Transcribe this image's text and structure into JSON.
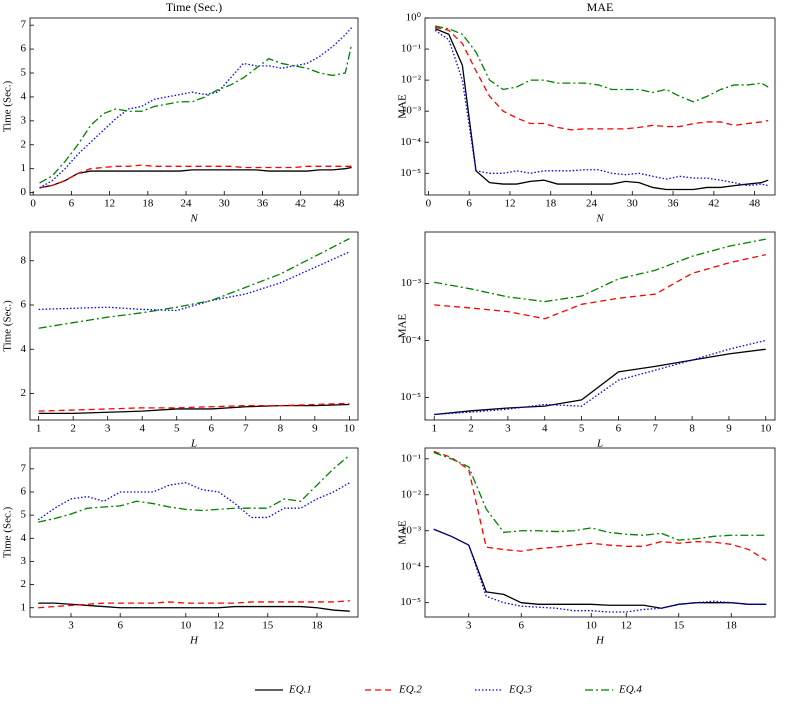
{
  "chart_data": [
    {
      "type": "line",
      "title": "Time (Sec.)",
      "xlabel": "N",
      "ylabel": "Time (Sec.)",
      "log_y": false,
      "x": [
        1,
        3,
        5,
        7,
        9,
        11,
        13,
        15,
        17,
        19,
        21,
        23,
        25,
        27,
        29,
        31,
        33,
        35,
        37,
        39,
        41,
        43,
        45,
        47,
        49,
        50
      ],
      "xlim": [
        -0.5,
        51
      ],
      "xticks": [
        0,
        6,
        12,
        18,
        24,
        30,
        36,
        42,
        48
      ],
      "ylim": [
        -0.1,
        7.3
      ],
      "yticks": [
        0,
        1,
        2,
        3,
        4,
        5,
        6,
        7
      ],
      "series": [
        {
          "name": "EQ.1",
          "color": "#000000",
          "linestyle": "solid",
          "values": [
            0.2,
            0.3,
            0.5,
            0.8,
            0.9,
            0.9,
            0.9,
            0.9,
            0.9,
            0.9,
            0.9,
            0.9,
            0.95,
            0.95,
            0.95,
            0.95,
            0.95,
            0.95,
            0.9,
            0.9,
            0.9,
            0.9,
            0.95,
            0.95,
            1.0,
            1.05
          ]
        },
        {
          "name": "EQ.2",
          "color": "#ff0000",
          "linestyle": "dashed",
          "values": [
            0.2,
            0.3,
            0.5,
            0.8,
            1.0,
            1.05,
            1.1,
            1.1,
            1.15,
            1.1,
            1.1,
            1.1,
            1.1,
            1.1,
            1.1,
            1.1,
            1.05,
            1.05,
            1.05,
            1.05,
            1.05,
            1.1,
            1.1,
            1.1,
            1.1,
            1.1
          ]
        },
        {
          "name": "EQ.3",
          "color": "#0000ff",
          "linestyle": "dotted",
          "values": [
            0.2,
            0.5,
            1.0,
            1.6,
            2.1,
            2.6,
            3.1,
            3.5,
            3.6,
            3.9,
            4.0,
            4.1,
            4.2,
            4.1,
            4.2,
            4.8,
            5.4,
            5.3,
            5.3,
            5.2,
            5.3,
            5.4,
            5.7,
            6.1,
            6.6,
            6.9
          ]
        },
        {
          "name": "EQ.4",
          "color": "#008000",
          "linestyle": "dashdot",
          "values": [
            0.4,
            0.7,
            1.3,
            2.0,
            2.8,
            3.3,
            3.5,
            3.4,
            3.4,
            3.6,
            3.7,
            3.8,
            3.8,
            4.0,
            4.3,
            4.5,
            4.8,
            5.2,
            5.6,
            5.4,
            5.3,
            5.2,
            5.0,
            4.9,
            5.0,
            6.2
          ]
        }
      ]
    },
    {
      "type": "line",
      "title": "MAE",
      "xlabel": "N",
      "ylabel": "MAE",
      "log_y": true,
      "x": [
        1,
        3,
        5,
        7,
        9,
        11,
        13,
        15,
        17,
        19,
        21,
        23,
        25,
        27,
        29,
        31,
        33,
        35,
        37,
        39,
        41,
        43,
        45,
        47,
        49,
        50
      ],
      "xlim": [
        -0.5,
        51
      ],
      "xticks": [
        0,
        6,
        12,
        18,
        24,
        30,
        36,
        42,
        48
      ],
      "ylim": [
        2e-06,
        1
      ],
      "yticks": [
        {
          "value": 1e-05,
          "label": "10⁻⁵"
        },
        {
          "value": 0.0001,
          "label": "10⁻⁴"
        },
        {
          "value": 0.001,
          "label": "10⁻³"
        },
        {
          "value": 0.01,
          "label": "10⁻²"
        },
        {
          "value": 0.1,
          "label": "10⁻¹"
        },
        {
          "value": 1,
          "label": "10⁰"
        }
      ],
      "series": [
        {
          "name": "EQ.1",
          "color": "#000000",
          "linestyle": "solid",
          "values": [
            0.45,
            0.3,
            0.03,
            1.2e-05,
            5e-06,
            4.5e-06,
            4.5e-06,
            5.5e-06,
            6e-06,
            4.5e-06,
            4.5e-06,
            4.5e-06,
            4.5e-06,
            4.5e-06,
            5.5e-06,
            5e-06,
            3.5e-06,
            3e-06,
            3e-06,
            3e-06,
            3.5e-06,
            3.5e-06,
            4e-06,
            4.5e-06,
            5e-06,
            6e-06
          ]
        },
        {
          "name": "EQ.2",
          "color": "#ff0000",
          "linestyle": "dashed",
          "values": [
            0.5,
            0.4,
            0.15,
            0.02,
            0.003,
            0.001,
            0.0006,
            0.0004,
            0.0004,
            0.0003,
            0.00025,
            0.00027,
            0.00027,
            0.00027,
            0.00027,
            0.0003,
            0.00035,
            0.00032,
            0.00032,
            0.0004,
            0.00045,
            0.00045,
            0.00035,
            0.0004,
            0.00045,
            0.0005
          ]
        },
        {
          "name": "EQ.3",
          "color": "#0000ff",
          "linestyle": "dotted",
          "values": [
            0.4,
            0.2,
            0.01,
            1.2e-05,
            1e-05,
            1e-05,
            1.2e-05,
            1e-05,
            1.2e-05,
            1.2e-05,
            1.2e-05,
            1.3e-05,
            1.3e-05,
            1e-05,
            9e-06,
            1e-05,
            8e-06,
            6.5e-06,
            8e-06,
            7e-06,
            7e-06,
            6e-06,
            5e-06,
            4e-06,
            4.5e-06,
            4e-06
          ]
        },
        {
          "name": "EQ.4",
          "color": "#008000",
          "linestyle": "dashdot",
          "values": [
            0.55,
            0.45,
            0.3,
            0.08,
            0.01,
            0.005,
            0.006,
            0.01,
            0.01,
            0.008,
            0.008,
            0.008,
            0.007,
            0.005,
            0.005,
            0.005,
            0.004,
            0.005,
            0.003,
            0.002,
            0.003,
            0.005,
            0.007,
            0.007,
            0.008,
            0.006
          ]
        }
      ]
    },
    {
      "type": "line",
      "xlabel": "L",
      "ylabel": "Time (Sec.)",
      "log_y": false,
      "x": [
        1,
        2,
        3,
        4,
        5,
        6,
        7,
        8,
        9,
        10
      ],
      "xlim": [
        0.75,
        10.25
      ],
      "xticks": [
        1,
        2,
        3,
        4,
        5,
        6,
        7,
        8,
        9,
        10
      ],
      "ylim": [
        0.8,
        9.3
      ],
      "yticks": [
        2,
        4,
        6,
        8
      ],
      "series": [
        {
          "name": "EQ.1",
          "color": "#000000",
          "linestyle": "solid",
          "values": [
            1.1,
            1.1,
            1.15,
            1.2,
            1.3,
            1.3,
            1.4,
            1.45,
            1.45,
            1.5
          ]
        },
        {
          "name": "EQ.2",
          "color": "#ff0000",
          "linestyle": "dashed",
          "values": [
            1.2,
            1.25,
            1.3,
            1.35,
            1.35,
            1.4,
            1.45,
            1.45,
            1.5,
            1.55
          ]
        },
        {
          "name": "EQ.3",
          "color": "#0000ff",
          "linestyle": "dotted",
          "values": [
            5.8,
            5.85,
            5.9,
            5.8,
            5.75,
            6.2,
            6.5,
            7.0,
            7.7,
            8.4
          ]
        },
        {
          "name": "EQ.4",
          "color": "#008000",
          "linestyle": "dashdot",
          "values": [
            4.95,
            5.2,
            5.45,
            5.65,
            5.9,
            6.2,
            6.8,
            7.4,
            8.2,
            9.0
          ]
        }
      ]
    },
    {
      "type": "line",
      "xlabel": "L",
      "ylabel": "MAE",
      "log_y": true,
      "x": [
        1,
        2,
        3,
        4,
        5,
        6,
        7,
        8,
        9,
        10
      ],
      "xlim": [
        0.75,
        10.25
      ],
      "xticks": [
        1,
        2,
        3,
        4,
        5,
        6,
        7,
        8,
        9,
        10
      ],
      "ylim": [
        4e-06,
        0.008
      ],
      "yticks": [
        {
          "value": 1e-05,
          "label": "10⁻⁵"
        },
        {
          "value": 0.0001,
          "label": "10⁻⁴"
        },
        {
          "value": 0.001,
          "label": "10⁻³"
        }
      ],
      "series": [
        {
          "name": "EQ.1",
          "color": "#000000",
          "linestyle": "solid",
          "values": [
            5e-06,
            5.8e-06,
            6.5e-06,
            7e-06,
            9e-06,
            2.8e-05,
            3.5e-05,
            4.5e-05,
            5.8e-05,
            7e-05
          ]
        },
        {
          "name": "EQ.2",
          "color": "#ff0000",
          "linestyle": "dashed",
          "values": [
            0.00042,
            0.00037,
            0.00032,
            0.00024,
            0.00043,
            0.00055,
            0.00065,
            0.0015,
            0.0023,
            0.0032
          ]
        },
        {
          "name": "EQ.3",
          "color": "#0000ff",
          "linestyle": "dotted",
          "values": [
            5e-06,
            5.5e-06,
            6.2e-06,
            7.5e-06,
            7e-06,
            2e-05,
            3e-05,
            4.5e-05,
            7e-05,
            0.0001
          ]
        },
        {
          "name": "EQ.4",
          "color": "#008000",
          "linestyle": "dashdot",
          "values": [
            0.00105,
            0.0008,
            0.00058,
            0.00048,
            0.0006,
            0.0012,
            0.0017,
            0.003,
            0.0045,
            0.006
          ]
        }
      ]
    },
    {
      "type": "line",
      "xlabel": "H",
      "ylabel": "Time (Sec.)",
      "log_y": false,
      "x": [
        1,
        2,
        3,
        4,
        5,
        6,
        7,
        8,
        9,
        10,
        11,
        12,
        13,
        14,
        15,
        16,
        17,
        18,
        19,
        20
      ],
      "xlim": [
        0.5,
        20.5
      ],
      "xticks": [
        3,
        6,
        10,
        12,
        15,
        18
      ],
      "ylim": [
        0.6,
        7.9
      ],
      "yticks": [
        1,
        2,
        3,
        4,
        5,
        6,
        7
      ],
      "series": [
        {
          "name": "EQ.1",
          "color": "#000000",
          "linestyle": "solid",
          "values": [
            1.2,
            1.2,
            1.15,
            1.1,
            1.05,
            1.0,
            1.0,
            1.0,
            1.0,
            1.0,
            1.0,
            1.0,
            1.05,
            1.05,
            1.05,
            1.05,
            1.05,
            1.0,
            0.9,
            0.85
          ]
        },
        {
          "name": "EQ.2",
          "color": "#ff0000",
          "linestyle": "dashed",
          "values": [
            1.0,
            1.05,
            1.1,
            1.15,
            1.2,
            1.2,
            1.2,
            1.2,
            1.25,
            1.2,
            1.2,
            1.2,
            1.2,
            1.25,
            1.25,
            1.25,
            1.25,
            1.25,
            1.25,
            1.3
          ]
        },
        {
          "name": "EQ.3",
          "color": "#0000ff",
          "linestyle": "dotted",
          "values": [
            4.8,
            5.3,
            5.7,
            5.8,
            5.6,
            6.0,
            6.0,
            6.0,
            6.3,
            6.4,
            6.1,
            6.0,
            5.5,
            4.9,
            4.9,
            5.3,
            5.3,
            5.7,
            6.0,
            6.4
          ]
        },
        {
          "name": "EQ.4",
          "color": "#008000",
          "linestyle": "dashdot",
          "values": [
            4.7,
            4.85,
            5.05,
            5.3,
            5.35,
            5.4,
            5.6,
            5.5,
            5.35,
            5.25,
            5.2,
            5.25,
            5.3,
            5.3,
            5.3,
            5.7,
            5.6,
            6.3,
            7.0,
            7.6
          ]
        }
      ]
    },
    {
      "type": "line",
      "xlabel": "H",
      "ylabel": "MAE",
      "log_y": true,
      "x": [
        1,
        2,
        3,
        4,
        5,
        6,
        7,
        8,
        9,
        10,
        11,
        12,
        13,
        14,
        15,
        16,
        17,
        18,
        19,
        20
      ],
      "xlim": [
        0.5,
        20.5
      ],
      "xticks": [
        3,
        6,
        10,
        12,
        15,
        18
      ],
      "ylim": [
        4e-06,
        0.2
      ],
      "yticks": [
        {
          "value": 1e-05,
          "label": "10⁻⁵"
        },
        {
          "value": 0.0001,
          "label": "10⁻⁴"
        },
        {
          "value": 0.001,
          "label": "10⁻³"
        },
        {
          "value": 0.01,
          "label": "10⁻²"
        },
        {
          "value": 0.1,
          "label": "10⁻¹"
        }
      ],
      "series": [
        {
          "name": "EQ.1",
          "color": "#000000",
          "linestyle": "solid",
          "values": [
            0.0011,
            0.0007,
            0.0004,
            2e-05,
            1.7e-05,
            1e-05,
            9e-06,
            9e-06,
            9e-06,
            9e-06,
            8.5e-06,
            8.5e-06,
            8.5e-06,
            7e-06,
            9e-06,
            1e-05,
            1e-05,
            1e-05,
            9e-06,
            9e-06
          ]
        },
        {
          "name": "EQ.2",
          "color": "#ff0000",
          "linestyle": "dashed",
          "values": [
            0.16,
            0.11,
            0.05,
            0.00035,
            0.0003,
            0.00027,
            0.00032,
            0.00035,
            0.0004,
            0.00045,
            0.0004,
            0.00037,
            0.00037,
            0.0005,
            0.00045,
            0.0005,
            0.00048,
            0.00042,
            0.0003,
            0.00015
          ]
        },
        {
          "name": "EQ.3",
          "color": "#0000ff",
          "linestyle": "dotted",
          "values": [
            0.0011,
            0.0007,
            0.0004,
            1.5e-05,
            1e-05,
            8e-06,
            7.5e-06,
            7e-06,
            6e-06,
            6e-06,
            5.5e-06,
            5.5e-06,
            6.5e-06,
            7e-06,
            9e-06,
            1e-05,
            1.1e-05,
            1e-05,
            9e-06,
            9e-06
          ]
        },
        {
          "name": "EQ.4",
          "color": "#008000",
          "linestyle": "dashdot",
          "values": [
            0.15,
            0.1,
            0.06,
            0.004,
            0.0009,
            0.001,
            0.001,
            0.00095,
            0.001,
            0.0012,
            0.0009,
            0.0008,
            0.00075,
            0.00085,
            0.00055,
            0.0006,
            0.0007,
            0.00075,
            0.00075,
            0.00075
          ]
        }
      ]
    }
  ]
}
